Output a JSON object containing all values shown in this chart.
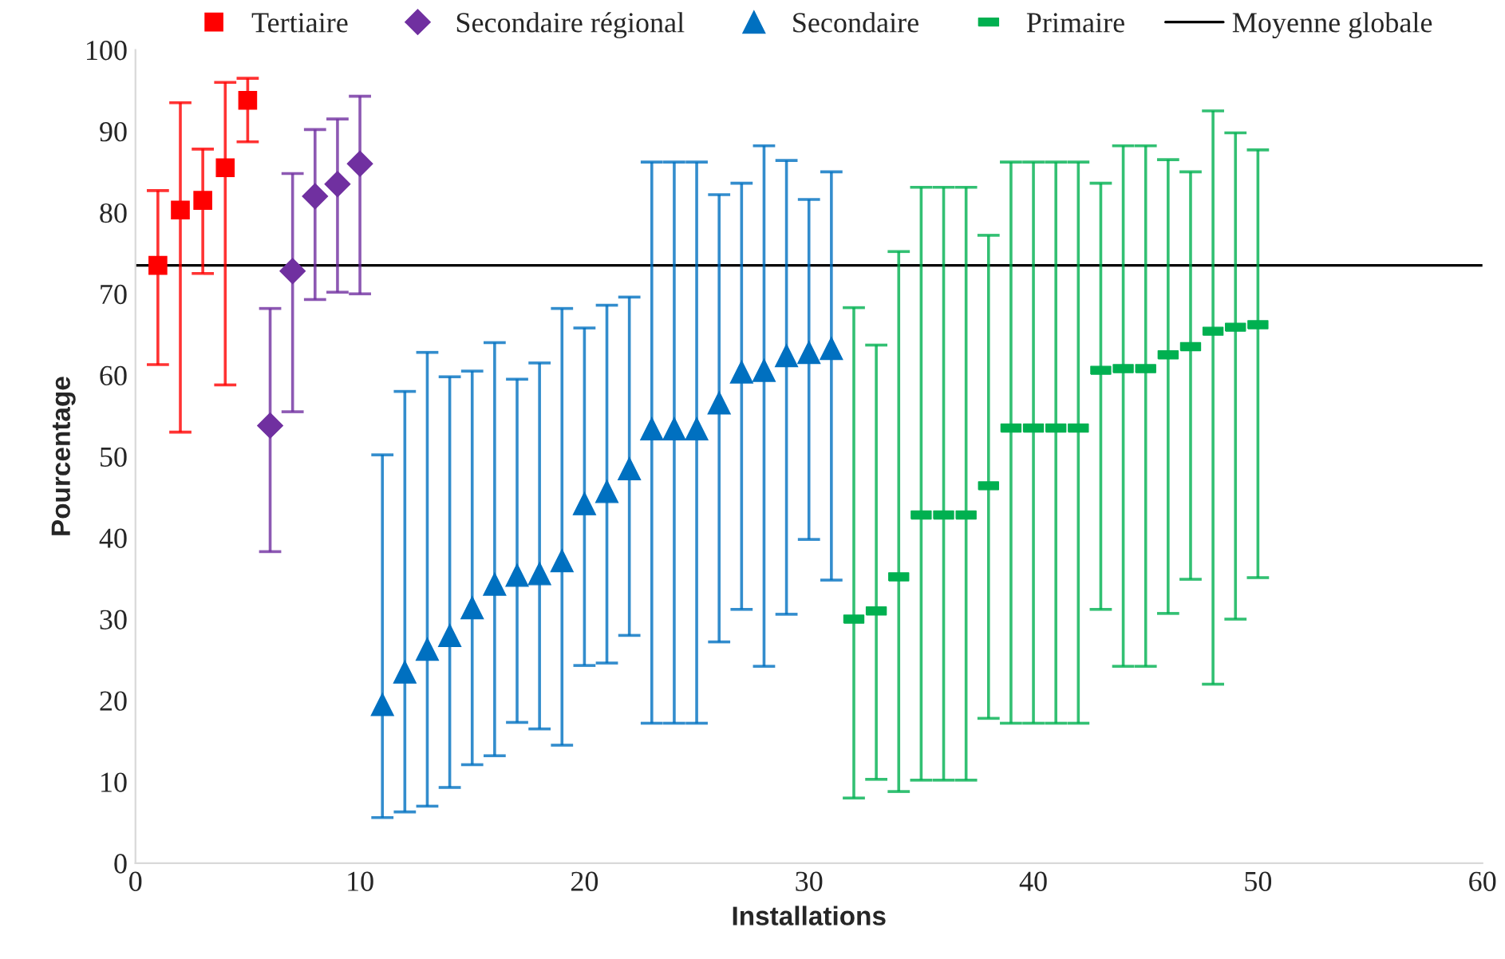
{
  "chart_data": {
    "type": "scatter",
    "xlabel": "Installations",
    "ylabel": "Pourcentage",
    "xlim": [
      0,
      60
    ],
    "xticks": [
      0,
      10,
      20,
      30,
      40,
      50,
      60
    ],
    "ylim": [
      0,
      100
    ],
    "yticks": [
      0,
      10,
      20,
      30,
      40,
      50,
      60,
      70,
      80,
      90,
      100
    ],
    "grid": false,
    "legend": "top",
    "series": [
      {
        "name": "Tertiaire",
        "color": "#ff0000",
        "marker": "square",
        "x": [
          1,
          2,
          3,
          4,
          5
        ],
        "values": [
          73.5,
          80.3,
          81.5,
          85.5,
          93.8
        ],
        "errors": [
          [
            61.3,
            82.7
          ],
          [
            53,
            93.5
          ],
          [
            72.5,
            87.8
          ],
          [
            58.8,
            96
          ],
          [
            88.7,
            96.5
          ]
        ]
      },
      {
        "name": "Secondaire régional",
        "color": "#7030a0",
        "marker": "diamond",
        "x": [
          6,
          7,
          8,
          9,
          10
        ],
        "values": [
          53.8,
          72.8,
          82,
          83.5,
          86
        ],
        "errors": [
          [
            38.3,
            68.2
          ],
          [
            55.5,
            84.8
          ],
          [
            69.3,
            90.2
          ],
          [
            70.2,
            91.5
          ],
          [
            70,
            94.3
          ]
        ]
      },
      {
        "name": "Secondaire",
        "color": "#0070c0",
        "marker": "triangle",
        "x": [
          11,
          12,
          13,
          14,
          15,
          16,
          17,
          18,
          19,
          20,
          21,
          22,
          23,
          24,
          25,
          26,
          27,
          28,
          29,
          30,
          31
        ],
        "values": [
          19.5,
          23.5,
          26.3,
          28,
          31.4,
          34.3,
          35.4,
          35.6,
          37.2,
          44.2,
          45.7,
          48.5,
          53.4,
          53.4,
          53.4,
          56.6,
          60.4,
          60.6,
          62.4,
          62.8,
          63.3
        ],
        "errors": [
          [
            5.6,
            50.2
          ],
          [
            6.3,
            58
          ],
          [
            7,
            62.8
          ],
          [
            9.3,
            59.8
          ],
          [
            12.1,
            60.5
          ],
          [
            13.2,
            64
          ],
          [
            17.3,
            59.5
          ],
          [
            16.5,
            61.5
          ],
          [
            14.5,
            68.2
          ],
          [
            24.3,
            65.8
          ],
          [
            24.6,
            68.6
          ],
          [
            28,
            69.6
          ],
          [
            17.2,
            86.2
          ],
          [
            17.2,
            86.2
          ],
          [
            17.2,
            86.2
          ],
          [
            27.2,
            82.2
          ],
          [
            31.2,
            83.6
          ],
          [
            24.2,
            88.2
          ],
          [
            30.6,
            86.4
          ],
          [
            39.8,
            81.6
          ],
          [
            34.8,
            85
          ]
        ]
      },
      {
        "name": "Primaire",
        "color": "#00b050",
        "x": [
          32,
          33,
          34,
          35,
          36,
          37,
          38,
          39,
          40,
          41,
          42,
          43,
          44,
          45,
          46,
          47,
          48,
          49,
          50
        ],
        "values": [
          30,
          31,
          35.2,
          42.8,
          42.8,
          42.8,
          46.4,
          53.5,
          53.5,
          53.5,
          53.5,
          60.6,
          60.8,
          60.8,
          62.5,
          63.5,
          65.4,
          65.9,
          66.2
        ],
        "errors": [
          [
            8,
            68.3
          ],
          [
            10.3,
            63.7
          ],
          [
            8.8,
            75.2
          ],
          [
            10.2,
            83.1
          ],
          [
            10.2,
            83.1
          ],
          [
            10.2,
            83.1
          ],
          [
            17.8,
            77.2
          ],
          [
            17.2,
            86.2
          ],
          [
            17.2,
            86.2
          ],
          [
            17.2,
            86.2
          ],
          [
            17.2,
            86.2
          ],
          [
            31.2,
            83.6
          ],
          [
            24.2,
            88.2
          ],
          [
            24.2,
            88.2
          ],
          [
            30.7,
            86.5
          ],
          [
            34.9,
            85
          ],
          [
            22,
            92.5
          ],
          [
            30,
            89.8
          ],
          [
            35.1,
            87.7
          ]
        ]
      }
    ],
    "ref_lines": [
      {
        "axis": "y",
        "value": 73.5,
        "label": "Moyenne globale",
        "color": "#000000"
      }
    ]
  }
}
